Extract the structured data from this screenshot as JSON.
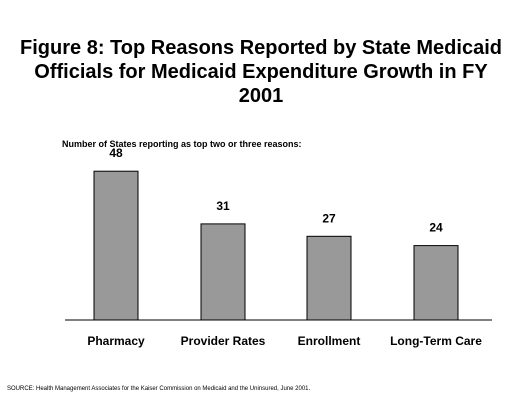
{
  "title": "Figure 8:  Top Reasons Reported by State Medicaid Officials for Medicaid Expenditure Growth in FY 2001",
  "subtitle": "Number of States reporting as top two or three reasons:",
  "source": "SOURCE:  Health Management Associates for the Kaiser Commission on Medicaid and the Uninsured, June 2001.",
  "colors": {
    "bar": "#999999",
    "bar_stroke": "#000000",
    "axis": "#000000"
  },
  "chart_data": {
    "type": "bar",
    "title": "Figure 8:  Top Reasons Reported by State Medicaid Officials for Medicaid Expenditure Growth in FY 2001",
    "subtitle": "Number of States reporting as top two or three reasons:",
    "categories": [
      "Pharmacy",
      "Provider Rates",
      "Enrollment",
      "Long-Term Care"
    ],
    "values": [
      48,
      31,
      27,
      24
    ],
    "ylim": [
      0,
      50
    ],
    "grid": false,
    "legend": "none"
  }
}
